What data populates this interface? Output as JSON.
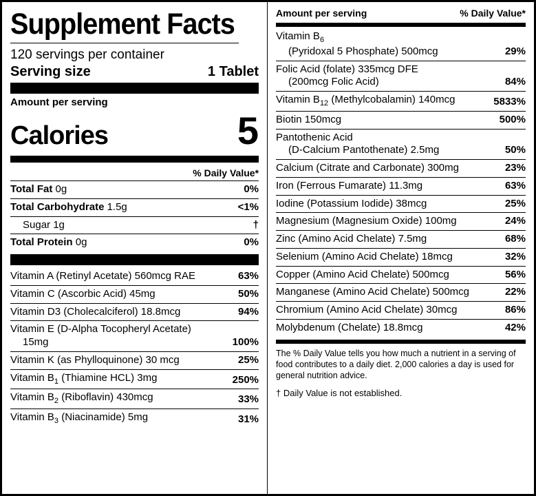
{
  "title": "Supplement Facts",
  "servings_per_container": "120 servings per container",
  "serving_size_label": "Serving size",
  "serving_size_value": "1 Tablet",
  "amount_per_serving": "Amount per serving",
  "calories_label": "Calories",
  "calories_value": "5",
  "dv_header": "% Daily Value*",
  "macros": [
    {
      "name_bold": "Total Fat",
      "amount": " 0g",
      "dv": "0%"
    },
    {
      "name_bold": "Total Carbohydrate",
      "amount": " 1.5g",
      "dv": "<1%"
    },
    {
      "name_bold": "",
      "amount": "Sugar 1g",
      "dv": "†",
      "indent": true
    },
    {
      "name_bold": "Total Protein",
      "amount": " 0g",
      "dv": "0%",
      "no_border": true
    }
  ],
  "left_vitamins": [
    {
      "name": "Vitamin A (Retinyl Acetate) 560mcg RAE",
      "dv": "63%"
    },
    {
      "name": "Vitamin C (Ascorbic Acid) 45mg",
      "dv": "50%"
    },
    {
      "name": "Vitamin D3 (Cholecalciferol) 18.8mcg",
      "dv": "94%"
    },
    {
      "name": "Vitamin E (D-Alpha Tocopheryl Acetate)",
      "sub_line": "15mg",
      "dv": "100%"
    },
    {
      "name": "Vitamin K (as Phylloquinone) 30 mcg",
      "dv": "25%"
    },
    {
      "name": "Vitamin B|1| (Thiamine HCL) 3mg",
      "dv": "250%"
    },
    {
      "name": "Vitamin B|2| (Riboflavin) 430mcg",
      "dv": "33%"
    },
    {
      "name": "Vitamin B|3| (Niacinamide) 5mg",
      "dv": "31%",
      "no_border": true
    }
  ],
  "right_header_left": "Amount per serving",
  "right_header_right": "% Daily Value*",
  "right_vitamins": [
    {
      "name": "Vitamin B|6|",
      "sub_line": "(Pyridoxal 5 Phosphate) 500mcg",
      "dv": "29%"
    },
    {
      "name": "Folic Acid (folate) 335mcg DFE",
      "sub_line": "(200mcg Folic Acid)",
      "dv": "84%"
    },
    {
      "name": "Vitamin B|12| (Methylcobalamin) 140mcg",
      "dv": "5833%"
    },
    {
      "name": "Biotin 150mcg",
      "dv": "500%"
    },
    {
      "name": "Pantothenic Acid",
      "sub_line": "(D-Calcium Pantothenate) 2.5mg",
      "dv": "50%"
    },
    {
      "name": "Calcium (Citrate and Carbonate) 300mg",
      "dv": "23%"
    },
    {
      "name": "Iron (Ferrous Fumarate) 11.3mg",
      "dv": "63%"
    },
    {
      "name": "Iodine (Potassium Iodide) 38mcg",
      "dv": "25%"
    },
    {
      "name": "Magnesium (Magnesium Oxide) 100mg",
      "dv": "24%"
    },
    {
      "name": "Zinc (Amino Acid Chelate) 7.5mg",
      "dv": "68%"
    },
    {
      "name": "Selenium (Amino Acid Chelate) 18mcg",
      "dv": "32%"
    },
    {
      "name": "Copper (Amino Acid Chelate) 500mcg",
      "dv": "56%"
    },
    {
      "name": "Manganese (Amino Acid Chelate) 500mcg",
      "dv": "22%"
    },
    {
      "name": "Chromium (Amino Acid Chelate) 30mcg",
      "dv": "86%"
    },
    {
      "name": "Molybdenum (Chelate) 18.8mcg",
      "dv": "42%",
      "no_border": true
    }
  ],
  "footnote1": "The % Daily Value tells you how much a nutrient in a serving of food contributes to a daily diet. 2,000 calories a day is used for general nutrition advice.",
  "footnote2": "† Daily Value is not established."
}
